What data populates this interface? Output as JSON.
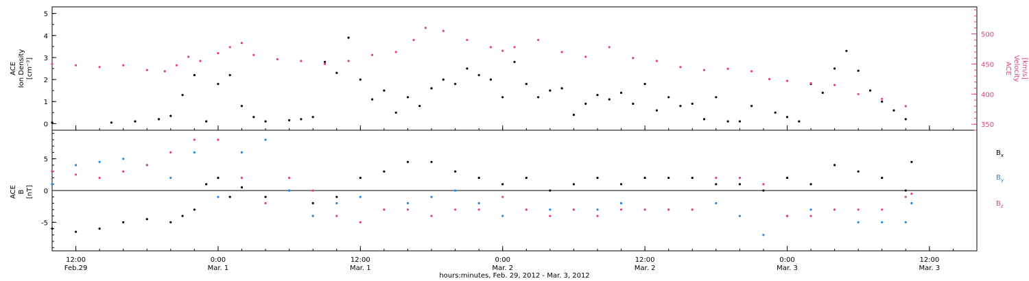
{
  "colors": {
    "axis": "#000000",
    "velocity": "#e8406a",
    "bx": "#000000",
    "by": "#1e88e5",
    "bz": "#e8406a"
  },
  "chart_data": [
    {
      "type": "scatter",
      "panel": "top",
      "ylabel_left_line1": "ACE",
      "ylabel_left_line2": "Ion Density",
      "ylabel_left_units": "[cm⁻³]",
      "ylabel_right_line1": "ACE",
      "ylabel_right_line2": "Velocity",
      "ylabel_right_units": "[km/s]",
      "ylim_left": [
        -0.3,
        5.3
      ],
      "yticks_left": [
        0,
        1,
        2,
        3,
        4,
        5
      ],
      "ylim_right": [
        340,
        545
      ],
      "yticks_right": [
        350,
        400,
        450,
        500
      ],
      "series": [
        {
          "key": "density",
          "axis": "left",
          "x": [
            "Feb 29 10:00",
            "Feb 29 15:00",
            "Feb 29 17:00",
            "Feb 29 19:00",
            "Feb 29 20:00",
            "Feb 29 21:00",
            "Feb 29 22:00",
            "Feb 29 23:00",
            "Mar 1 00:00",
            "Mar 1 01:00",
            "Mar 1 02:00",
            "Mar 1 03:00",
            "Mar 1 04:00",
            "Mar 1 06:00",
            "Mar 1 07:00",
            "Mar 1 08:00",
            "Mar 1 09:00",
            "Mar 1 10:00",
            "Mar 1 11:00",
            "Mar 1 12:00",
            "Mar 1 13:00",
            "Mar 1 14:00",
            "Mar 1 15:00",
            "Mar 1 16:00",
            "Mar 1 17:00",
            "Mar 1 18:00",
            "Mar 1 19:00",
            "Mar 1 20:00",
            "Mar 1 21:00",
            "Mar 1 22:00",
            "Mar 1 23:00",
            "Mar 2 00:00",
            "Mar 2 01:00",
            "Mar 2 02:00",
            "Mar 2 03:00",
            "Mar 2 04:00",
            "Mar 2 05:00",
            "Mar 2 06:00",
            "Mar 2 07:00",
            "Mar 2 08:00",
            "Mar 2 09:00",
            "Mar 2 10:00",
            "Mar 2 11:00",
            "Mar 2 12:00",
            "Mar 2 13:00",
            "Mar 2 14:00",
            "Mar 2 15:00",
            "Mar 2 16:00",
            "Mar 2 17:00",
            "Mar 2 18:00",
            "Mar 2 19:00",
            "Mar 2 20:00",
            "Mar 2 21:00",
            "Mar 2 23:00",
            "Mar 3 00:00",
            "Mar 3 01:00",
            "Mar 3 02:00",
            "Mar 3 03:00",
            "Mar 3 04:00",
            "Mar 3 05:00",
            "Mar 3 06:00",
            "Mar 3 07:00",
            "Mar 3 08:00",
            "Mar 3 09:00",
            "Mar 3 10:00"
          ],
          "values": [
            0.05,
            0.05,
            0.1,
            0.2,
            0.35,
            1.3,
            2.2,
            0.1,
            1.8,
            2.2,
            0.8,
            0.3,
            0.1,
            0.15,
            0.2,
            0.3,
            2.8,
            2.3,
            3.9,
            2.0,
            1.1,
            1.5,
            0.5,
            1.2,
            0.8,
            1.6,
            2.0,
            1.8,
            2.5,
            2.2,
            2.0,
            1.2,
            2.8,
            1.8,
            1.2,
            1.5,
            1.6,
            0.4,
            0.9,
            1.3,
            1.1,
            1.4,
            0.9,
            1.8,
            0.6,
            1.2,
            0.8,
            0.9,
            0.2,
            1.2,
            0.1,
            0.1,
            0.8,
            0.5,
            0.3,
            0.1,
            1.8,
            1.4,
            2.5,
            3.3,
            2.4,
            1.5,
            1.0,
            0.6,
            0.2
          ]
        },
        {
          "key": "velocity",
          "axis": "right",
          "x": [
            "Feb 29 10:00",
            "Feb 29 12:00",
            "Feb 29 14:00",
            "Feb 29 16:00",
            "Feb 29 18:00",
            "Feb 29 19:30",
            "Feb 29 20:30",
            "Feb 29 21:30",
            "Feb 29 22:30",
            "Mar 1 00:00",
            "Mar 1 01:00",
            "Mar 1 02:00",
            "Mar 1 03:00",
            "Mar 1 05:00",
            "Mar 1 07:00",
            "Mar 1 09:00",
            "Mar 1 11:00",
            "Mar 1 13:00",
            "Mar 1 15:00",
            "Mar 1 16:30",
            "Mar 1 17:30",
            "Mar 1 19:00",
            "Mar 1 21:00",
            "Mar 1 23:00",
            "Mar 2 00:00",
            "Mar 2 01:00",
            "Mar 2 03:00",
            "Mar 2 05:00",
            "Mar 2 07:00",
            "Mar 2 09:00",
            "Mar 2 11:00",
            "Mar 2 13:00",
            "Mar 2 15:00",
            "Mar 2 17:00",
            "Mar 2 19:00",
            "Mar 2 21:00",
            "Mar 2 22:30",
            "Mar 3 00:00",
            "Mar 3 02:00",
            "Mar 3 04:00",
            "Mar 3 06:00",
            "Mar 3 08:00",
            "Mar 3 10:00"
          ],
          "values": [
            450,
            448,
            445,
            448,
            440,
            438,
            448,
            462,
            455,
            468,
            478,
            485,
            465,
            458,
            455,
            450,
            455,
            465,
            470,
            490,
            510,
            505,
            490,
            478,
            472,
            478,
            490,
            470,
            462,
            478,
            460,
            455,
            445,
            440,
            442,
            438,
            425,
            422,
            418,
            415,
            400,
            392,
            380
          ]
        }
      ]
    },
    {
      "type": "scatter",
      "panel": "bottom",
      "ylabel_line1": "ACE",
      "ylabel_line2": "B",
      "ylabel_units": "[nT]",
      "ylim": [
        -9.5,
        9.5
      ],
      "yticks": [
        -5,
        0,
        5
      ],
      "legend": [
        {
          "key": "bx",
          "label": "B",
          "sub": "x"
        },
        {
          "key": "by",
          "label": "B",
          "sub": "y"
        },
        {
          "key": "bz",
          "label": "B",
          "sub": "z"
        }
      ],
      "legend_position": "right",
      "zero_line": true,
      "series": [
        {
          "key": "bx",
          "x": [
            "Feb 29 10:00",
            "Feb 29 12:00",
            "Feb 29 14:00",
            "Feb 29 16:00",
            "Feb 29 18:00",
            "Feb 29 20:00",
            "Feb 29 21:00",
            "Feb 29 22:00",
            "Feb 29 23:00",
            "Mar 1 00:00",
            "Mar 1 01:00",
            "Mar 1 02:00",
            "Mar 1 04:00",
            "Mar 1 06:00",
            "Mar 1 08:00",
            "Mar 1 10:00",
            "Mar 1 12:00",
            "Mar 1 14:00",
            "Mar 1 16:00",
            "Mar 1 18:00",
            "Mar 1 20:00",
            "Mar 1 22:00",
            "Mar 2 00:00",
            "Mar 2 02:00",
            "Mar 2 04:00",
            "Mar 2 06:00",
            "Mar 2 08:00",
            "Mar 2 10:00",
            "Mar 2 12:00",
            "Mar 2 14:00",
            "Mar 2 16:00",
            "Mar 2 18:00",
            "Mar 2 20:00",
            "Mar 2 22:00",
            "Mar 3 00:00",
            "Mar 3 02:00",
            "Mar 3 04:00",
            "Mar 3 06:00",
            "Mar 3 08:00",
            "Mar 3 10:00",
            "Mar 3 10:30"
          ],
          "values": [
            -6,
            -6.5,
            -6,
            -5,
            -4.5,
            -5,
            -4,
            -3,
            1,
            2,
            -1,
            0.5,
            -1,
            0,
            -2,
            -1,
            2,
            3,
            4.5,
            4.5,
            3,
            2,
            1,
            2,
            0,
            1,
            2,
            1,
            2,
            2,
            2,
            1,
            1,
            0,
            2,
            1,
            4,
            3,
            2,
            0,
            4.5
          ]
        },
        {
          "key": "by",
          "x": [
            "Feb 29 10:00",
            "Feb 29 12:00",
            "Feb 29 14:00",
            "Feb 29 16:00",
            "Feb 29 18:00",
            "Feb 29 20:00",
            "Feb 29 22:00",
            "Mar 1 00:00",
            "Mar 1 02:00",
            "Mar 1 04:00",
            "Mar 1 06:00",
            "Mar 1 08:00",
            "Mar 1 10:00",
            "Mar 1 12:00",
            "Mar 1 14:00",
            "Mar 1 16:00",
            "Mar 1 18:00",
            "Mar 1 20:00",
            "Mar 1 22:00",
            "Mar 2 00:00",
            "Mar 2 02:00",
            "Mar 2 04:00",
            "Mar 2 06:00",
            "Mar 2 08:00",
            "Mar 2 10:00",
            "Mar 2 12:00",
            "Mar 2 14:00",
            "Mar 2 16:00",
            "Mar 2 18:00",
            "Mar 2 20:00",
            "Mar 2 22:00",
            "Mar 3 00:00",
            "Mar 3 02:00",
            "Mar 3 04:00",
            "Mar 3 06:00",
            "Mar 3 08:00",
            "Mar 3 10:00",
            "Mar 3 10:30"
          ],
          "values": [
            1,
            4,
            4.5,
            5,
            4,
            2,
            6,
            -1,
            6,
            8,
            0,
            -4,
            -2,
            -1,
            -3,
            -2,
            -1,
            0,
            -2,
            -4,
            -3,
            -3,
            -3,
            -3,
            -2,
            -3,
            -3,
            -3,
            -2,
            -4,
            -7,
            -4,
            -3,
            -3,
            -5,
            -5,
            -5,
            -2
          ]
        },
        {
          "key": "bz",
          "x": [
            "Feb 29 10:00",
            "Feb 29 12:00",
            "Feb 29 14:00",
            "Feb 29 16:00",
            "Feb 29 18:00",
            "Feb 29 20:00",
            "Feb 29 22:00",
            "Mar 1 00:00",
            "Mar 1 02:00",
            "Mar 1 04:00",
            "Mar 1 06:00",
            "Mar 1 08:00",
            "Mar 1 10:00",
            "Mar 1 12:00",
            "Mar 1 14:00",
            "Mar 1 16:00",
            "Mar 1 18:00",
            "Mar 1 20:00",
            "Mar 1 22:00",
            "Mar 2 00:00",
            "Mar 2 02:00",
            "Mar 2 04:00",
            "Mar 2 06:00",
            "Mar 2 08:00",
            "Mar 2 10:00",
            "Mar 2 12:00",
            "Mar 2 14:00",
            "Mar 2 16:00",
            "Mar 2 18:00",
            "Mar 2 20:00",
            "Mar 2 22:00",
            "Mar 3 00:00",
            "Mar 3 02:00",
            "Mar 3 04:00",
            "Mar 3 06:00",
            "Mar 3 08:00",
            "Mar 3 10:00",
            "Mar 3 10:30"
          ],
          "values": [
            3,
            2.5,
            2,
            3,
            4,
            6,
            8,
            8,
            2,
            -2,
            2,
            0,
            -4,
            -5,
            -3,
            -3,
            -4,
            -3,
            -3,
            -1,
            -3,
            -4,
            -3,
            -4,
            -3,
            -3,
            -3,
            -3,
            2,
            2,
            1,
            -4,
            -4,
            -3,
            -3,
            -3,
            -1,
            -0.5
          ]
        }
      ]
    }
  ],
  "x_axis": {
    "title": "hours:minutes, Feb. 29, 2012 - Mar.  3, 2012",
    "ticks": [
      {
        "t": "Feb 29 12:00",
        "time": "12:00",
        "date": "Feb.29"
      },
      {
        "t": "Mar 1 00:00",
        "time": "0:00",
        "date": "Mar. 1"
      },
      {
        "t": "Mar 1 12:00",
        "time": "12:00",
        "date": "Mar. 1"
      },
      {
        "t": "Mar 2 00:00",
        "time": "0:00",
        "date": "Mar. 2"
      },
      {
        "t": "Mar 2 12:00",
        "time": "12:00",
        "date": "Mar. 2"
      },
      {
        "t": "Mar 3 00:00",
        "time": "0:00",
        "date": "Mar. 3"
      },
      {
        "t": "Mar 3 12:00",
        "time": "12:00",
        "date": "Mar. 3"
      }
    ],
    "start": "Feb 29 10:00",
    "end": "Mar 3 16:00"
  }
}
